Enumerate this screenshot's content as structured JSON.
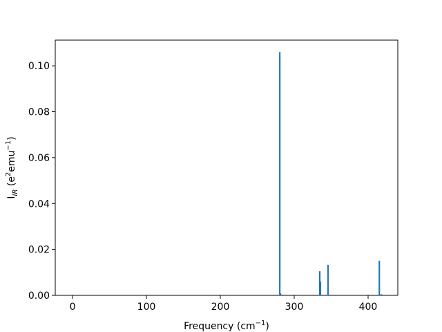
{
  "chart_data": {
    "type": "bar",
    "xlabel": [
      {
        "text": "Frequency (cm",
        "script": "normal"
      },
      {
        "text": "−1",
        "script": "super"
      },
      {
        "text": ")",
        "script": "normal"
      }
    ],
    "ylabel": [
      {
        "text": "I",
        "script": "normal"
      },
      {
        "text": "IR",
        "script": "sub"
      },
      {
        "text": " (e",
        "script": "normal"
      },
      {
        "text": "2",
        "script": "super"
      },
      {
        "text": "emu",
        "script": "normal"
      },
      {
        "text": "−1",
        "script": "super"
      },
      {
        "text": ")",
        "script": "normal"
      }
    ],
    "x": [
      280.5,
      281.5,
      334.6,
      335.5,
      345.8,
      415.2,
      418.0
    ],
    "values": [
      0.106,
      0.0008,
      0.0105,
      0.006,
      0.0133,
      0.0151,
      0.0005
    ],
    "color": "#1f77b4",
    "xlim": [
      -23.4,
      440.2
    ],
    "ylim": [
      0,
      0.1112
    ],
    "xticks": [
      0,
      100,
      200,
      300,
      400
    ],
    "yticks": [
      {
        "value": 0,
        "label": "0.00"
      },
      {
        "value": 0.02,
        "label": "0.02"
      },
      {
        "value": 0.04,
        "label": "0.04"
      },
      {
        "value": 0.06,
        "label": "0.06"
      },
      {
        "value": 0.08,
        "label": "0.08"
      },
      {
        "value": 0.1,
        "label": "0.10"
      }
    ],
    "grid": false
  }
}
